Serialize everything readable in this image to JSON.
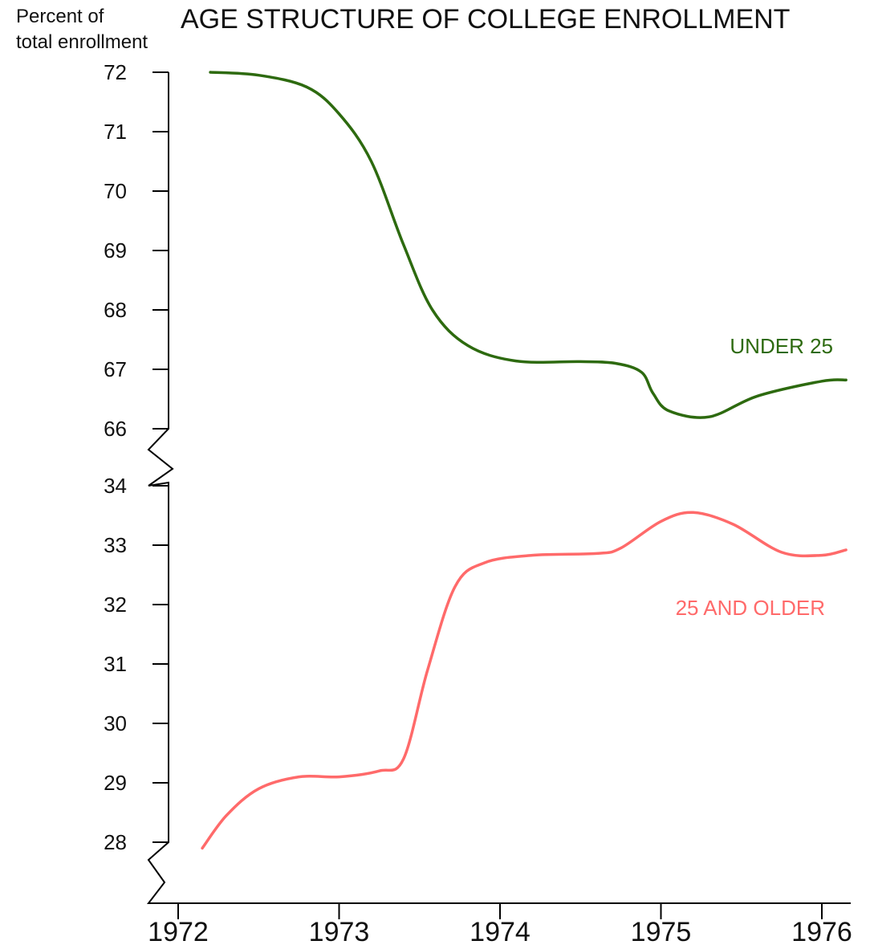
{
  "chart_data": {
    "type": "line",
    "title": "AGE STRUCTURE OF COLLEGE ENROLLMENT",
    "ylabel_lines": [
      "Percent of",
      "total enrollment"
    ],
    "xlabel": "",
    "x_ticks": [
      "1972",
      "1973",
      "1974",
      "1975",
      "1976"
    ],
    "y_ticks_upper": [
      "72",
      "71",
      "70",
      "69",
      "68",
      "67",
      "66"
    ],
    "y_ticks_lower": [
      "34",
      "33",
      "32",
      "31",
      "30",
      "29",
      "28"
    ],
    "ylim_upper": [
      66,
      72
    ],
    "ylim_lower": [
      28,
      34
    ],
    "axis_break": true,
    "grid": false,
    "legend": "inline labels",
    "series": [
      {
        "name": "UNDER 25",
        "color": "#2d6a0f",
        "x": [
          1972.2,
          1972.5,
          1972.8,
          1973.0,
          1973.2,
          1973.4,
          1973.58,
          1973.8,
          1974.1,
          1974.5,
          1974.72,
          1974.88,
          1974.95,
          1975.05,
          1975.3,
          1975.6,
          1976.0,
          1976.15
        ],
        "y": [
          72.0,
          71.95,
          71.75,
          71.3,
          70.5,
          69.1,
          68.0,
          67.4,
          67.14,
          67.13,
          67.1,
          66.95,
          66.6,
          66.3,
          66.2,
          66.55,
          66.8,
          66.82
        ]
      },
      {
        "name": "25 AND OLDER",
        "color": "#ff6a6a",
        "x": [
          1972.15,
          1972.3,
          1972.5,
          1972.75,
          1973.0,
          1973.25,
          1973.4,
          1973.55,
          1973.72,
          1973.9,
          1974.2,
          1974.6,
          1974.75,
          1975.0,
          1975.2,
          1975.45,
          1975.75,
          1976.0,
          1976.15
        ],
        "y": [
          27.9,
          28.45,
          28.9,
          29.1,
          29.1,
          29.2,
          29.4,
          30.9,
          32.3,
          32.7,
          32.83,
          32.86,
          32.95,
          33.4,
          33.55,
          33.35,
          32.88,
          32.83,
          32.92
        ]
      }
    ]
  }
}
